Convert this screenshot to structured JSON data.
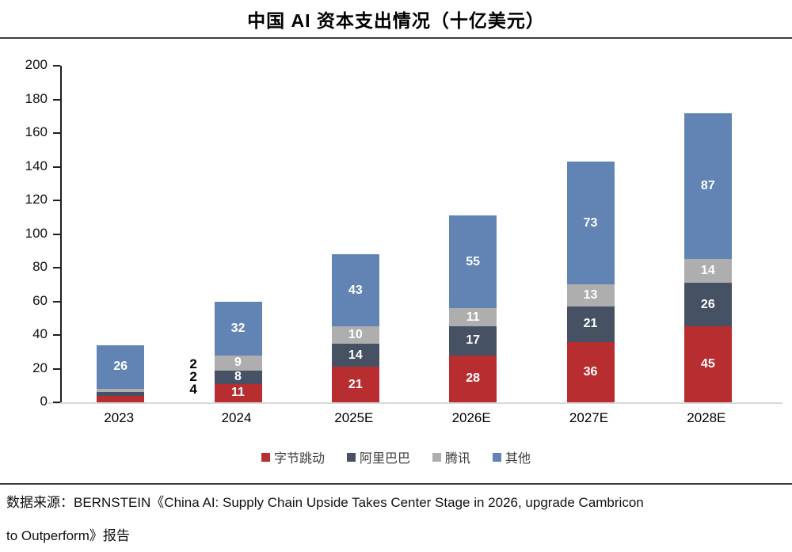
{
  "title": "中国 AI 资本支出情况（十亿美元）",
  "chart_data": {
    "type": "bar",
    "stacked": true,
    "title": "中国 AI 资本支出情况（十亿美元）",
    "categories": [
      "2023",
      "2024",
      "2025E",
      "2026E",
      "2027E",
      "2028E"
    ],
    "series": [
      {
        "name": "字节跳动",
        "color": "#b82e30",
        "values": [
          4,
          11,
          21,
          28,
          36,
          45
        ]
      },
      {
        "name": "阿里巴巴",
        "color": "#465264",
        "values": [
          2,
          8,
          14,
          17,
          21,
          26
        ]
      },
      {
        "name": "腾讯",
        "color": "#aeaeae",
        "values": [
          2,
          9,
          10,
          11,
          13,
          14
        ]
      },
      {
        "name": "其他",
        "color": "#6184b4",
        "values": [
          26,
          32,
          43,
          55,
          73,
          87
        ]
      }
    ],
    "totals": [
      34,
      60,
      88,
      111,
      143,
      172
    ],
    "ylim": [
      0,
      200
    ],
    "yticks": [
      0,
      20,
      40,
      60,
      80,
      100,
      120,
      140,
      160,
      180,
      200
    ],
    "grid": false,
    "legend_position": "bottom",
    "value_label_color_inside": "#ffffff",
    "value_label_color_outside": "#000000",
    "note": "2023 small segments labeled outside bar: 腾讯 2, 阿里巴巴 2, 字节跳动 4"
  },
  "source": {
    "line1": "数据来源：BERNSTEIN《China AI: Supply Chain Upside Takes Center Stage in 2026, upgrade Cambricon",
    "line2": "to Outperform》报告"
  }
}
